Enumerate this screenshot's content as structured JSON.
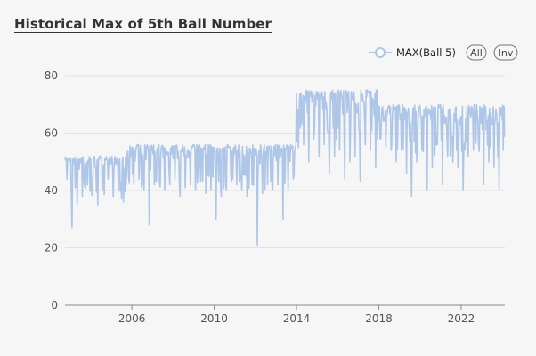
{
  "title": "Historical Max of 5th Ball Number",
  "legend": {
    "series_label": "MAX(Ball 5)",
    "all_label": "All",
    "inv_label": "Inv",
    "color": "#aec6e8"
  },
  "chart_data": {
    "type": "line",
    "title": "Historical Max of 5th Ball Number",
    "xlabel": "",
    "ylabel": "",
    "x_range": [
      "2002-10-01",
      "2024-02-15"
    ],
    "ylim": [
      0,
      80
    ],
    "x_ticks": [
      "2006",
      "2010",
      "2014",
      "2018",
      "2022"
    ],
    "y_ticks": [
      "0",
      "20",
      "40",
      "60",
      "80"
    ],
    "grid": "horizontal",
    "legend_position": "top-right",
    "series": [
      {
        "name": "MAX(Ball 5)",
        "color": "#aec6e8",
        "x": [
          "2002-10",
          "2003-01",
          "2003-04",
          "2003-07",
          "2003-10",
          "2004-01",
          "2004-04",
          "2004-07",
          "2004-10",
          "2005-01",
          "2005-04",
          "2005-07",
          "2005-10",
          "2006-01",
          "2006-04",
          "2006-07",
          "2006-10",
          "2007-01",
          "2007-04",
          "2007-07",
          "2007-10",
          "2008-01",
          "2008-04",
          "2008-07",
          "2008-10",
          "2009-01",
          "2009-04",
          "2009-07",
          "2009-10",
          "2010-01",
          "2010-04",
          "2010-07",
          "2010-10",
          "2011-01",
          "2011-04",
          "2011-07",
          "2011-10",
          "2012-01",
          "2012-04",
          "2012-07",
          "2012-10",
          "2013-01",
          "2013-04",
          "2013-07",
          "2013-10",
          "2014-01",
          "2014-04",
          "2014-07",
          "2014-10",
          "2015-01",
          "2015-04",
          "2015-07",
          "2015-10",
          "2016-01",
          "2016-04",
          "2016-07",
          "2016-10",
          "2017-01",
          "2017-04",
          "2017-07",
          "2017-10",
          "2018-01",
          "2018-04",
          "2018-07",
          "2018-10",
          "2019-01",
          "2019-04",
          "2019-07",
          "2019-10",
          "2020-01",
          "2020-04",
          "2020-07",
          "2020-10",
          "2021-01",
          "2021-04",
          "2021-07",
          "2021-10",
          "2022-01",
          "2022-04",
          "2022-07",
          "2022-10",
          "2023-01",
          "2023-04",
          "2023-07",
          "2023-10",
          "2024-01"
        ],
        "high": [
          52,
          52,
          52,
          52,
          52,
          52,
          52,
          52,
          52,
          52,
          52,
          52,
          56,
          56,
          56,
          56,
          56,
          56,
          56,
          56,
          56,
          56,
          56,
          56,
          56,
          56,
          56,
          56,
          56,
          56,
          56,
          56,
          56,
          56,
          56,
          56,
          56,
          56,
          56,
          56,
          56,
          56,
          56,
          56,
          56,
          75,
          75,
          75,
          75,
          75,
          75,
          75,
          75,
          75,
          75,
          75,
          75,
          75,
          75,
          75,
          75,
          70,
          70,
          70,
          70,
          70,
          70,
          70,
          70,
          70,
          70,
          70,
          70,
          70,
          70,
          70,
          70,
          70,
          70,
          70,
          70,
          70,
          70,
          70,
          70,
          70
        ],
        "low": [
          44,
          27,
          35,
          38,
          42,
          40,
          35,
          42,
          44,
          38,
          40,
          36,
          45,
          42,
          44,
          40,
          28,
          42,
          43,
          40,
          42,
          44,
          38,
          41,
          42,
          40,
          43,
          39,
          40,
          30,
          38,
          40,
          43,
          42,
          40,
          38,
          42,
          21,
          39,
          42,
          40,
          42,
          30,
          40,
          44,
          55,
          56,
          50,
          58,
          52,
          56,
          46,
          52,
          54,
          44,
          50,
          52,
          43,
          56,
          54,
          48,
          58,
          55,
          54,
          50,
          54,
          46,
          38,
          50,
          54,
          40,
          48,
          56,
          42,
          52,
          50,
          48,
          40,
          52,
          54,
          56,
          42,
          50,
          48,
          40,
          54
        ],
        "typical": [
          48,
          46,
          47,
          48,
          48,
          47,
          47,
          48,
          49,
          47,
          48,
          47,
          51,
          50,
          51,
          50,
          51,
          50,
          51,
          50,
          51,
          51,
          50,
          51,
          51,
          50,
          51,
          50,
          51,
          49,
          50,
          51,
          51,
          51,
          50,
          50,
          51,
          49,
          49,
          50,
          49,
          50,
          48,
          49,
          52,
          67,
          68,
          66,
          68,
          68,
          68,
          66,
          66,
          68,
          66,
          67,
          67,
          66,
          68,
          68,
          66,
          64,
          64,
          63,
          63,
          64,
          62,
          62,
          63,
          63,
          62,
          62,
          63,
          62,
          62,
          63,
          62,
          61,
          62,
          63,
          63,
          61,
          62,
          62,
          61,
          63
        ]
      }
    ]
  }
}
